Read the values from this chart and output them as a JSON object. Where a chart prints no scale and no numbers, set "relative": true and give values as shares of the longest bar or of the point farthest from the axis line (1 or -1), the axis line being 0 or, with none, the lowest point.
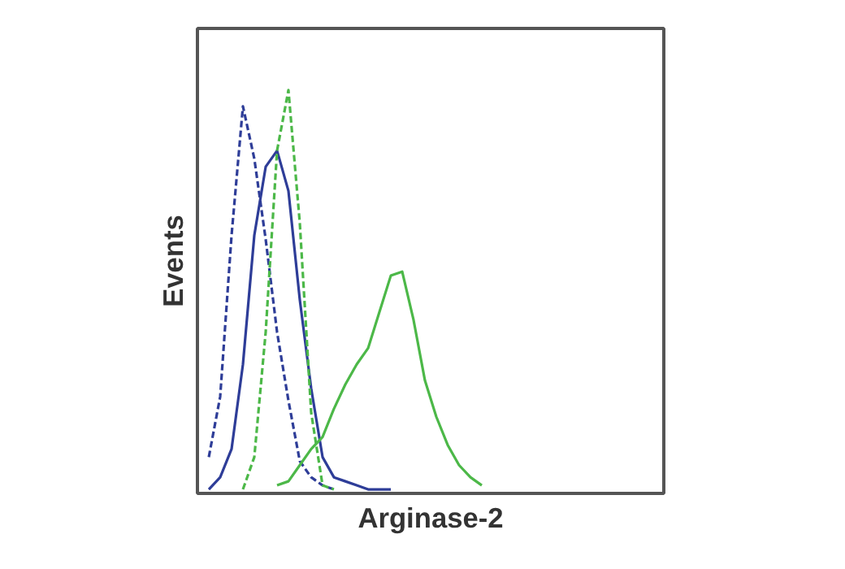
{
  "chart_data": {
    "type": "line",
    "relative": true,
    "xlabel": "Arginase-2",
    "ylabel": "Events",
    "tick_labels": false,
    "categories": [
      null,
      null,
      null,
      null,
      null,
      null,
      null,
      null,
      null,
      null,
      null,
      null,
      null,
      null,
      null,
      null,
      null,
      null,
      null,
      null,
      null,
      null,
      null,
      null,
      null,
      null,
      null,
      null,
      null,
      null,
      null,
      null,
      null,
      null,
      null,
      null,
      null,
      null,
      null,
      null,
      null,
      null
    ],
    "series": [
      {
        "color": "#2e3d98",
        "line_style": "dashed",
        "values": [
          null,
          0.09,
          0.24,
          0.64,
          0.96,
          0.83,
          0.63,
          0.4,
          0.23,
          0.08,
          0.04,
          0.02,
          0.01,
          null,
          null,
          null,
          null,
          null,
          null,
          null,
          null,
          null,
          null,
          null,
          null,
          null,
          null,
          null,
          null,
          null,
          null,
          null,
          null,
          null,
          null,
          null,
          null,
          null,
          null,
          null,
          null,
          null
        ]
      },
      {
        "color": "#2e3d98",
        "line_style": "solid",
        "values": [
          null,
          0.01,
          0.04,
          0.11,
          0.32,
          0.64,
          0.81,
          0.85,
          0.75,
          0.48,
          0.26,
          0.09,
          0.04,
          0.03,
          0.02,
          0.01,
          0.01,
          0.01,
          null,
          null,
          null,
          null,
          null,
          null,
          null,
          null,
          null,
          null,
          null,
          null,
          null,
          null,
          null,
          null,
          null,
          null,
          null,
          null,
          null,
          null,
          null,
          null
        ]
      },
      {
        "color": "#4cb848",
        "line_style": "dashed",
        "values": [
          null,
          null,
          null,
          null,
          0.01,
          0.09,
          0.4,
          0.85,
          1.0,
          0.67,
          0.2,
          0.02,
          0.01,
          null,
          null,
          null,
          null,
          null,
          null,
          null,
          null,
          null,
          null,
          null,
          null,
          null,
          null,
          null,
          null,
          null,
          null,
          null,
          null,
          null,
          null,
          null,
          null,
          null,
          null,
          null,
          null,
          null
        ]
      },
      {
        "color": "#4cb848",
        "line_style": "solid",
        "values": [
          null,
          null,
          null,
          null,
          null,
          null,
          null,
          0.02,
          0.03,
          0.07,
          0.11,
          0.14,
          0.21,
          0.27,
          0.32,
          0.36,
          0.45,
          0.54,
          0.55,
          0.43,
          0.28,
          0.19,
          0.12,
          0.07,
          0.04,
          0.02,
          null,
          null,
          null,
          null,
          null,
          null,
          null,
          null,
          null,
          null,
          null,
          null,
          null,
          null,
          null,
          null
        ]
      }
    ]
  }
}
